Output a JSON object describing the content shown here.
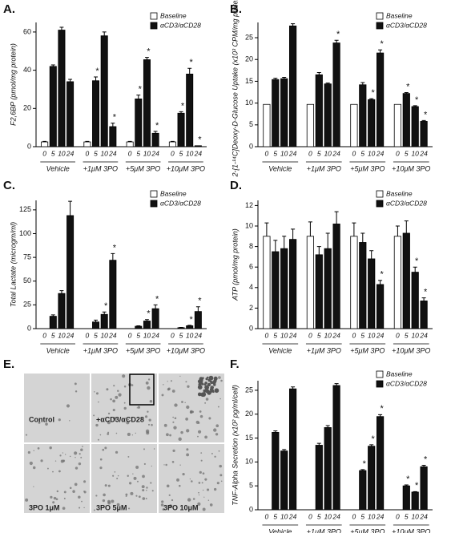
{
  "chart_data": [
    {
      "type": "bar",
      "panel": "A.",
      "ylabel": "F2,6BP (pmol/mg protein)",
      "categories": [
        "0",
        "5",
        "10",
        "24",
        "0",
        "5",
        "10",
        "24",
        "0",
        "5",
        "10",
        "24",
        "0",
        "5",
        "10",
        "24"
      ],
      "groups": [
        "Vehicle",
        "+1μM 3PO",
        "+5μM 3PO",
        "+10μM 3PO"
      ],
      "ylim": [
        0,
        65
      ],
      "yticks": [
        0,
        20,
        40,
        60
      ],
      "series": [
        {
          "name": "Baseline",
          "color": "#ffffff",
          "values": [
            2.5,
            null,
            null,
            null,
            2.5,
            null,
            null,
            null,
            2.5,
            null,
            null,
            null,
            2.5,
            null,
            null,
            null
          ],
          "errors": [
            0.3,
            null,
            null,
            null,
            0.3,
            null,
            null,
            null,
            0.3,
            null,
            null,
            null,
            0.3,
            null,
            null,
            null
          ]
        },
        {
          "name": "αCD3/αCD28",
          "color": "#111111",
          "values": [
            null,
            42,
            61,
            34,
            null,
            34.5,
            58,
            10.5,
            null,
            25,
            45.5,
            7,
            null,
            17.5,
            38,
            0.5
          ],
          "errors": [
            null,
            0.8,
            1.5,
            1.2,
            null,
            2,
            2,
            1.8,
            null,
            2,
            1.2,
            1,
            null,
            0.8,
            3,
            null
          ],
          "annotations": [
            null,
            null,
            null,
            null,
            null,
            "*",
            null,
            "*",
            null,
            "*",
            "*",
            "*",
            null,
            "*",
            "*",
            "*"
          ]
        }
      ]
    },
    {
      "type": "bar",
      "panel": "B.",
      "ylabel": "2-[1-¹⁴C]Deoxy-D-Glucose Uptake (x10³ CPM/mg protein)",
      "categories": [
        "0",
        "5",
        "10",
        "24",
        "0",
        "5",
        "10",
        "24",
        "0",
        "5",
        "10",
        "24",
        "0",
        "5",
        "10",
        "24"
      ],
      "groups": [
        "Vehicle",
        "+1μM 3PO",
        "+5μM 3PO",
        "+10μM 3PO"
      ],
      "ylim": [
        0,
        28.5
      ],
      "yticks": [
        0,
        5,
        10,
        15,
        20,
        25
      ],
      "series": [
        {
          "name": "Baseline",
          "color": "#ffffff",
          "values": [
            9.7,
            null,
            null,
            null,
            9.7,
            null,
            null,
            null,
            9.7,
            null,
            null,
            null,
            9.7,
            null,
            null,
            null
          ],
          "errors": [
            null,
            null,
            null,
            null,
            null,
            null,
            null,
            null,
            null,
            null,
            null,
            null,
            null,
            null,
            null,
            null
          ]
        },
        {
          "name": "αCD3/αCD28",
          "color": "#111111",
          "values": [
            null,
            15.4,
            15.6,
            27.7,
            null,
            16.5,
            14.4,
            23.8,
            null,
            14.2,
            10.8,
            21.5,
            null,
            12.2,
            9.2,
            5.8
          ],
          "errors": [
            null,
            0.3,
            0.3,
            0.5,
            null,
            0.5,
            0.2,
            0.6,
            null,
            0.5,
            0.2,
            0.7,
            null,
            0.2,
            0.2,
            0.2
          ],
          "annotations": [
            null,
            null,
            null,
            null,
            null,
            null,
            null,
            "*",
            null,
            null,
            "*",
            "*",
            null,
            "*",
            "*",
            "*"
          ]
        }
      ]
    },
    {
      "type": "bar",
      "panel": "C.",
      "ylabel": "Total Lactate (microgm/ml)",
      "categories": [
        "0",
        "5",
        "10",
        "24",
        "0",
        "5",
        "10",
        "24",
        "0",
        "5",
        "10",
        "24",
        "0",
        "5",
        "10",
        "24"
      ],
      "groups": [
        "Vehicle",
        "+1μM 3PO",
        "+5μM 3PO",
        "+10μM 3PO"
      ],
      "ylim": [
        0,
        135
      ],
      "yticks": [
        0,
        25,
        50,
        75,
        100,
        125
      ],
      "series": [
        {
          "name": "Baseline",
          "color": "#ffffff",
          "values": [
            0,
            null,
            null,
            null,
            0,
            null,
            null,
            null,
            0,
            null,
            null,
            null,
            0,
            null,
            null,
            null
          ],
          "errors": [
            null,
            null,
            null,
            null,
            null,
            null,
            null,
            null,
            null,
            null,
            null,
            null,
            null,
            null,
            null,
            null
          ]
        },
        {
          "name": "αCD3/αCD28",
          "color": "#111111",
          "values": [
            null,
            13,
            37,
            119,
            null,
            7,
            15,
            72,
            null,
            2.5,
            8,
            21,
            null,
            1,
            3,
            18
          ],
          "errors": [
            null,
            1.5,
            3,
            15,
            null,
            2,
            2.5,
            7,
            null,
            0.5,
            1.5,
            4,
            null,
            0.3,
            0.5,
            5
          ],
          "annotations": [
            null,
            null,
            null,
            null,
            null,
            null,
            "*",
            "*",
            null,
            null,
            "*",
            "*",
            null,
            null,
            "*",
            "*"
          ]
        }
      ]
    },
    {
      "type": "bar",
      "panel": "D.",
      "ylabel": "ATP (pmol/mg protein)",
      "categories": [
        "0",
        "5",
        "10",
        "24",
        "0",
        "5",
        "10",
        "24",
        "0",
        "5",
        "10",
        "24",
        "0",
        "5",
        "10",
        "24"
      ],
      "groups": [
        "Vehicle",
        "+1μM 3PO",
        "+5μM 3PO",
        "+10μM 3PO"
      ],
      "ylim": [
        0,
        12.5
      ],
      "yticks": [
        0,
        2,
        4,
        6,
        8,
        10,
        12
      ],
      "series": [
        {
          "name": "Baseline",
          "color": "#ffffff",
          "values": [
            9.0,
            null,
            null,
            null,
            9.0,
            null,
            null,
            null,
            9.0,
            null,
            null,
            null,
            9.0,
            null,
            null,
            null
          ],
          "errors": [
            1.3,
            null,
            null,
            null,
            1.4,
            null,
            null,
            null,
            1.3,
            null,
            null,
            null,
            1.0,
            null,
            null,
            null
          ]
        },
        {
          "name": "αCD3/αCD28",
          "color": "#111111",
          "values": [
            null,
            7.5,
            7.8,
            8.7,
            null,
            7.2,
            7.8,
            10.2,
            null,
            8.4,
            6.8,
            4.3,
            null,
            9.3,
            5.5,
            2.7
          ],
          "errors": [
            null,
            1.1,
            1.2,
            1.0,
            null,
            0.8,
            1.5,
            1.2,
            null,
            0.9,
            0.8,
            0.4,
            null,
            1.2,
            0.5,
            0.3
          ],
          "annotations": [
            null,
            null,
            null,
            null,
            null,
            null,
            null,
            null,
            null,
            null,
            null,
            "*",
            null,
            null,
            "*",
            "*"
          ]
        }
      ]
    },
    {
      "type": "bar",
      "panel": "F.",
      "ylabel": "TNF-Alpha Secretion (x10² pg/ml/cell)",
      "categories": [
        "0",
        "5",
        "10",
        "24",
        "0",
        "5",
        "10",
        "24",
        "0",
        "5",
        "10",
        "24",
        "0",
        "5",
        "10",
        "24"
      ],
      "groups": [
        "Vehicle",
        "+1μM 3PO",
        "+5μM 3PO",
        "+10μM 3PO"
      ],
      "ylim": [
        0,
        27
      ],
      "yticks": [
        0,
        5,
        10,
        15,
        20,
        25
      ],
      "series": [
        {
          "name": "Baseline",
          "color": "#ffffff",
          "values": [
            0,
            null,
            null,
            null,
            0,
            null,
            null,
            null,
            0,
            null,
            null,
            null,
            0,
            null,
            null,
            null
          ],
          "errors": [
            null,
            null,
            null,
            null,
            null,
            null,
            null,
            null,
            null,
            null,
            null,
            null,
            null,
            null,
            null,
            null
          ]
        },
        {
          "name": "αCD3/αCD28",
          "color": "#111111",
          "values": [
            null,
            16.2,
            12.3,
            25.3,
            null,
            13.5,
            17.2,
            26,
            null,
            8.2,
            13.3,
            19.5,
            null,
            5,
            3.7,
            9
          ],
          "errors": [
            null,
            0.3,
            0.3,
            0.4,
            null,
            0.4,
            0.4,
            0.4,
            null,
            0.2,
            0.3,
            0.4,
            null,
            0.2,
            0.1,
            0.3
          ],
          "annotations": [
            null,
            null,
            null,
            null,
            null,
            null,
            null,
            null,
            null,
            "*",
            "*",
            "*",
            null,
            "*",
            "*",
            "*"
          ]
        }
      ]
    }
  ],
  "image_panel": {
    "panel": "E.",
    "captions": [
      "Control",
      "+αCD3/αCD28",
      "3PO 1μM",
      "3PO 5μM",
      "3PO 10μM"
    ]
  }
}
